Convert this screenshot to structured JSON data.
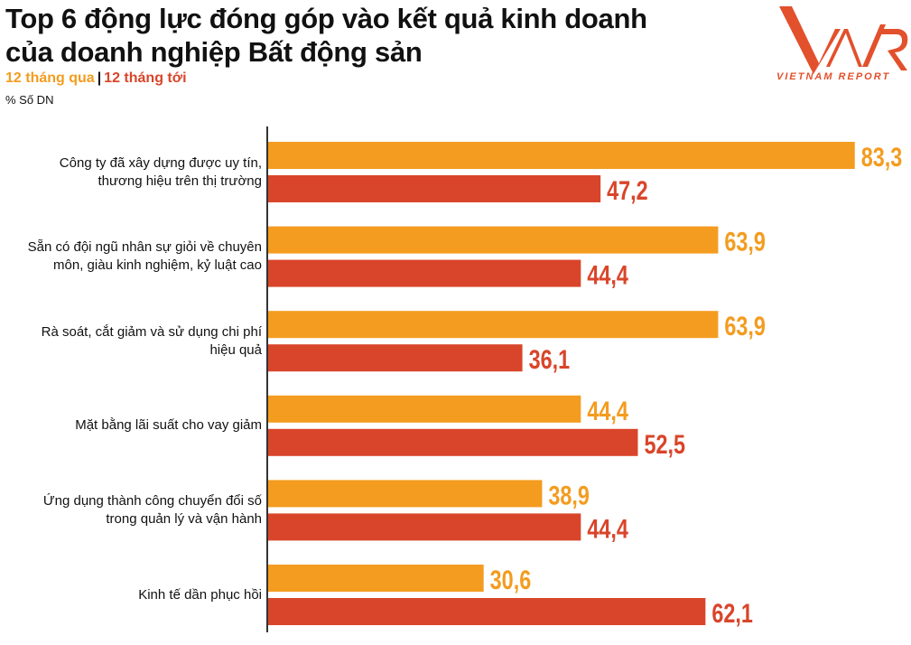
{
  "header": {
    "title_line1": "Top 6 động lực đóng góp vào kết quả kinh doanh",
    "title_line2": "của doanh nghiệp Bất động sản",
    "legend_past": "12 tháng qua",
    "legend_sep": "|",
    "legend_next": "12 tháng tới",
    "unit": "% Số DN",
    "logo_text": "VIETNAM REPORT",
    "logo_mark": "VNR"
  },
  "colors": {
    "past": "#f39c1f",
    "next": "#d9452a",
    "axis": "#333333"
  },
  "chart_data": {
    "type": "bar",
    "orientation": "horizontal",
    "title": "Top 6 động lực đóng góp vào kết quả kinh doanh của doanh nghiệp Bất động sản",
    "ylabel": "% Số DN",
    "xlim": [
      0,
      90
    ],
    "categories": [
      [
        "Công ty đã xây dựng được uy tín,",
        "thương hiệu trên thị trường"
      ],
      [
        "Sẵn có đội ngũ nhân sự giỏi về chuyên",
        "môn, giàu kinh nghiệm, kỷ luật cao"
      ],
      [
        "Rà soát, cắt giảm và sử dụng chi phí",
        "hiệu quả"
      ],
      [
        "Mặt bằng lãi suất cho vay giảm"
      ],
      [
        "Ứng dụng thành công chuyển đổi số",
        "trong quản lý và vận hành"
      ],
      [
        "Kinh tế dần phục hồi"
      ]
    ],
    "series": [
      {
        "name": "12 tháng qua",
        "values": [
          83.3,
          63.9,
          63.9,
          44.4,
          38.9,
          30.6
        ],
        "labels": [
          "83,3",
          "63,9",
          "63,9",
          "44,4",
          "38,9",
          "30,6"
        ]
      },
      {
        "name": "12 tháng tới",
        "values": [
          47.2,
          44.4,
          36.1,
          52.5,
          44.4,
          62.1
        ],
        "labels": [
          "47,2",
          "44,4",
          "36,1",
          "52,5",
          "44,4",
          "62,1"
        ]
      }
    ],
    "legend": "top-left",
    "grid": false
  }
}
